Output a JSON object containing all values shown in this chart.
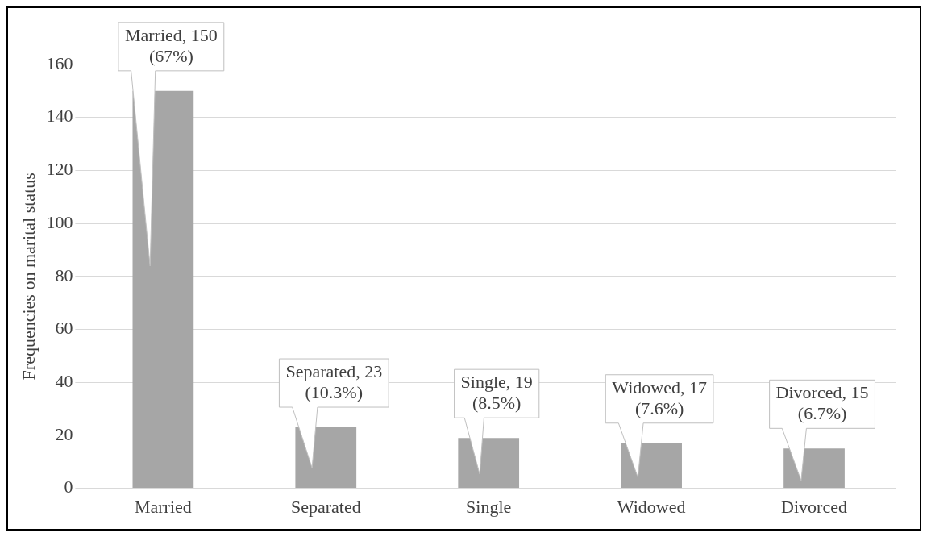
{
  "chart_data": {
    "type": "bar",
    "ylabel": "Frequencies on marital status",
    "categories": [
      "Married",
      "Separated",
      "Single",
      "Widowed",
      "Divorced"
    ],
    "values": [
      150,
      23,
      19,
      17,
      15
    ],
    "color": "#a6a6a6",
    "value_labels": [
      "Married, 150 (67%)",
      "Separated, 23 (10.3%)",
      "Single, 19 (8.5%)",
      "Widowed, 17 (7.6%)",
      "Divorced, 15 (6.7%)"
    ],
    "ylim": [
      0,
      160
    ],
    "yticks": [
      0,
      20,
      40,
      60,
      80,
      100,
      120,
      140,
      160
    ],
    "grid": "y",
    "legend": false
  }
}
